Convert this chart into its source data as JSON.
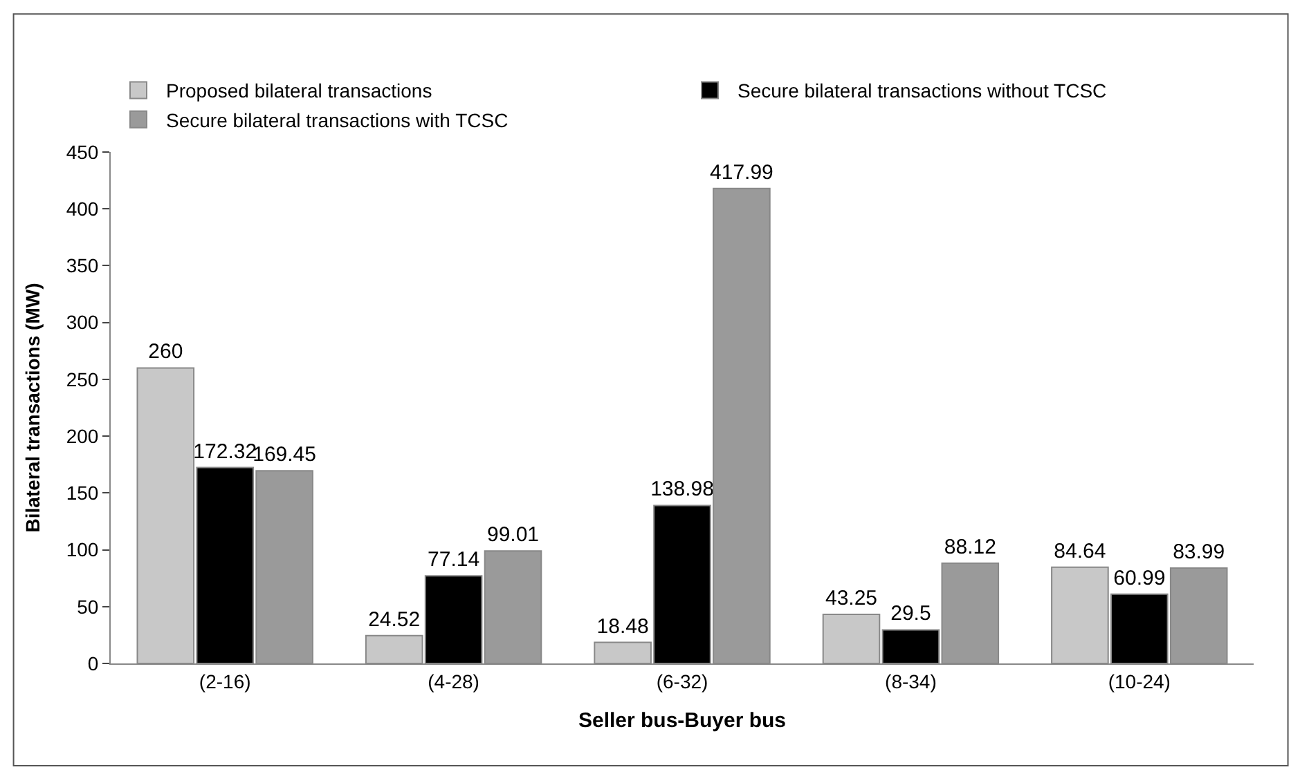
{
  "chart_data": {
    "type": "bar",
    "xlabel": "Seller bus-Buyer bus",
    "ylabel": "Bilateral transactions (MW)",
    "categories": [
      "(2-16)",
      "(4-28)",
      "(6-32)",
      "(8-34)",
      "(10-24)"
    ],
    "series": [
      {
        "name": "Proposed bilateral transactions",
        "color": "#c8c8c8",
        "values": [
          260,
          24.52,
          18.48,
          43.25,
          84.64
        ]
      },
      {
        "name": "Secure bilateral transactions without TCSC",
        "color": "#000000",
        "values": [
          172.32,
          77.14,
          138.98,
          29.5,
          60.99
        ]
      },
      {
        "name": "Secure bilateral transactions with TCSC",
        "color": "#9a9a9a",
        "values": [
          169.45,
          99.01,
          417.99,
          88.12,
          83.99
        ]
      }
    ],
    "ylim": [
      0,
      450
    ],
    "yticks": [
      0,
      50,
      100,
      150,
      200,
      250,
      300,
      350,
      400,
      450
    ],
    "data_labels": true,
    "legend": "top left"
  }
}
